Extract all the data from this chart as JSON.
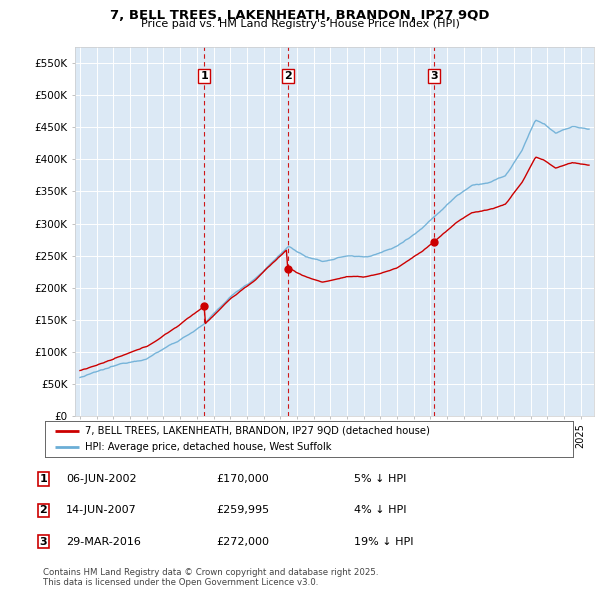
{
  "title": "7, BELL TREES, LAKENHEATH, BRANDON, IP27 9QD",
  "subtitle": "Price paid vs. HM Land Registry's House Price Index (HPI)",
  "plot_bg_color": "#dce9f5",
  "hpi_color": "#6baed6",
  "price_color": "#cc0000",
  "vline_color": "#cc0000",
  "sale_points": [
    {
      "date_num": 2002.44,
      "price": 170000,
      "label": "1"
    },
    {
      "date_num": 2007.45,
      "price": 259995,
      "label": "2"
    },
    {
      "date_num": 2016.24,
      "price": 272000,
      "label": "3"
    }
  ],
  "ylim": [
    0,
    575000
  ],
  "yticks": [
    0,
    50000,
    100000,
    150000,
    200000,
    250000,
    300000,
    350000,
    400000,
    450000,
    500000,
    550000
  ],
  "ytick_labels": [
    "£0",
    "£50K",
    "£100K",
    "£150K",
    "£200K",
    "£250K",
    "£300K",
    "£350K",
    "£400K",
    "£450K",
    "£500K",
    "£550K"
  ],
  "xlim_start": 1994.7,
  "xlim_end": 2025.8,
  "legend_line1": "7, BELL TREES, LAKENHEATH, BRANDON, IP27 9QD (detached house)",
  "legend_line2": "HPI: Average price, detached house, West Suffolk",
  "table_rows": [
    [
      "1",
      "06-JUN-2002",
      "£170,000",
      "5% ↓ HPI"
    ],
    [
      "2",
      "14-JUN-2007",
      "£259,995",
      "4% ↓ HPI"
    ],
    [
      "3",
      "29-MAR-2016",
      "£272,000",
      "19% ↓ HPI"
    ]
  ],
  "footnote": "Contains HM Land Registry data © Crown copyright and database right 2025.\nThis data is licensed under the Open Government Licence v3.0."
}
